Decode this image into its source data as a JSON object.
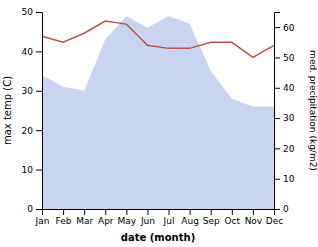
{
  "chart_data": {
    "type": "line",
    "categories": [
      "Jan",
      "Feb",
      "Mar",
      "Apr",
      "May",
      "Jun",
      "Jul",
      "Aug",
      "Sep",
      "Oct",
      "Nov",
      "Dec"
    ],
    "series": [
      {
        "type": "area",
        "color": "#c8d4f0",
        "values": [
          34,
          31,
          30,
          43,
          49,
          46,
          49,
          47,
          35,
          28,
          26,
          26
        ]
      },
      {
        "type": "line",
        "color": "#c0504d",
        "axis": "y2",
        "values": [
          57,
          55,
          58,
          62,
          61,
          54,
          53,
          53,
          55,
          55,
          50,
          54
        ]
      }
    ],
    "xlabel": "date (month)",
    "ylabel": "max temp (C)",
    "y2label": "med. precipitation (kg/m2)",
    "ylim": [
      0,
      50
    ],
    "yticks": [
      0,
      10,
      20,
      30,
      40,
      50
    ],
    "y2lim": [
      0,
      65
    ],
    "y2ticks": [
      0,
      10,
      20,
      30,
      40,
      50,
      60
    ],
    "grid": false
  }
}
